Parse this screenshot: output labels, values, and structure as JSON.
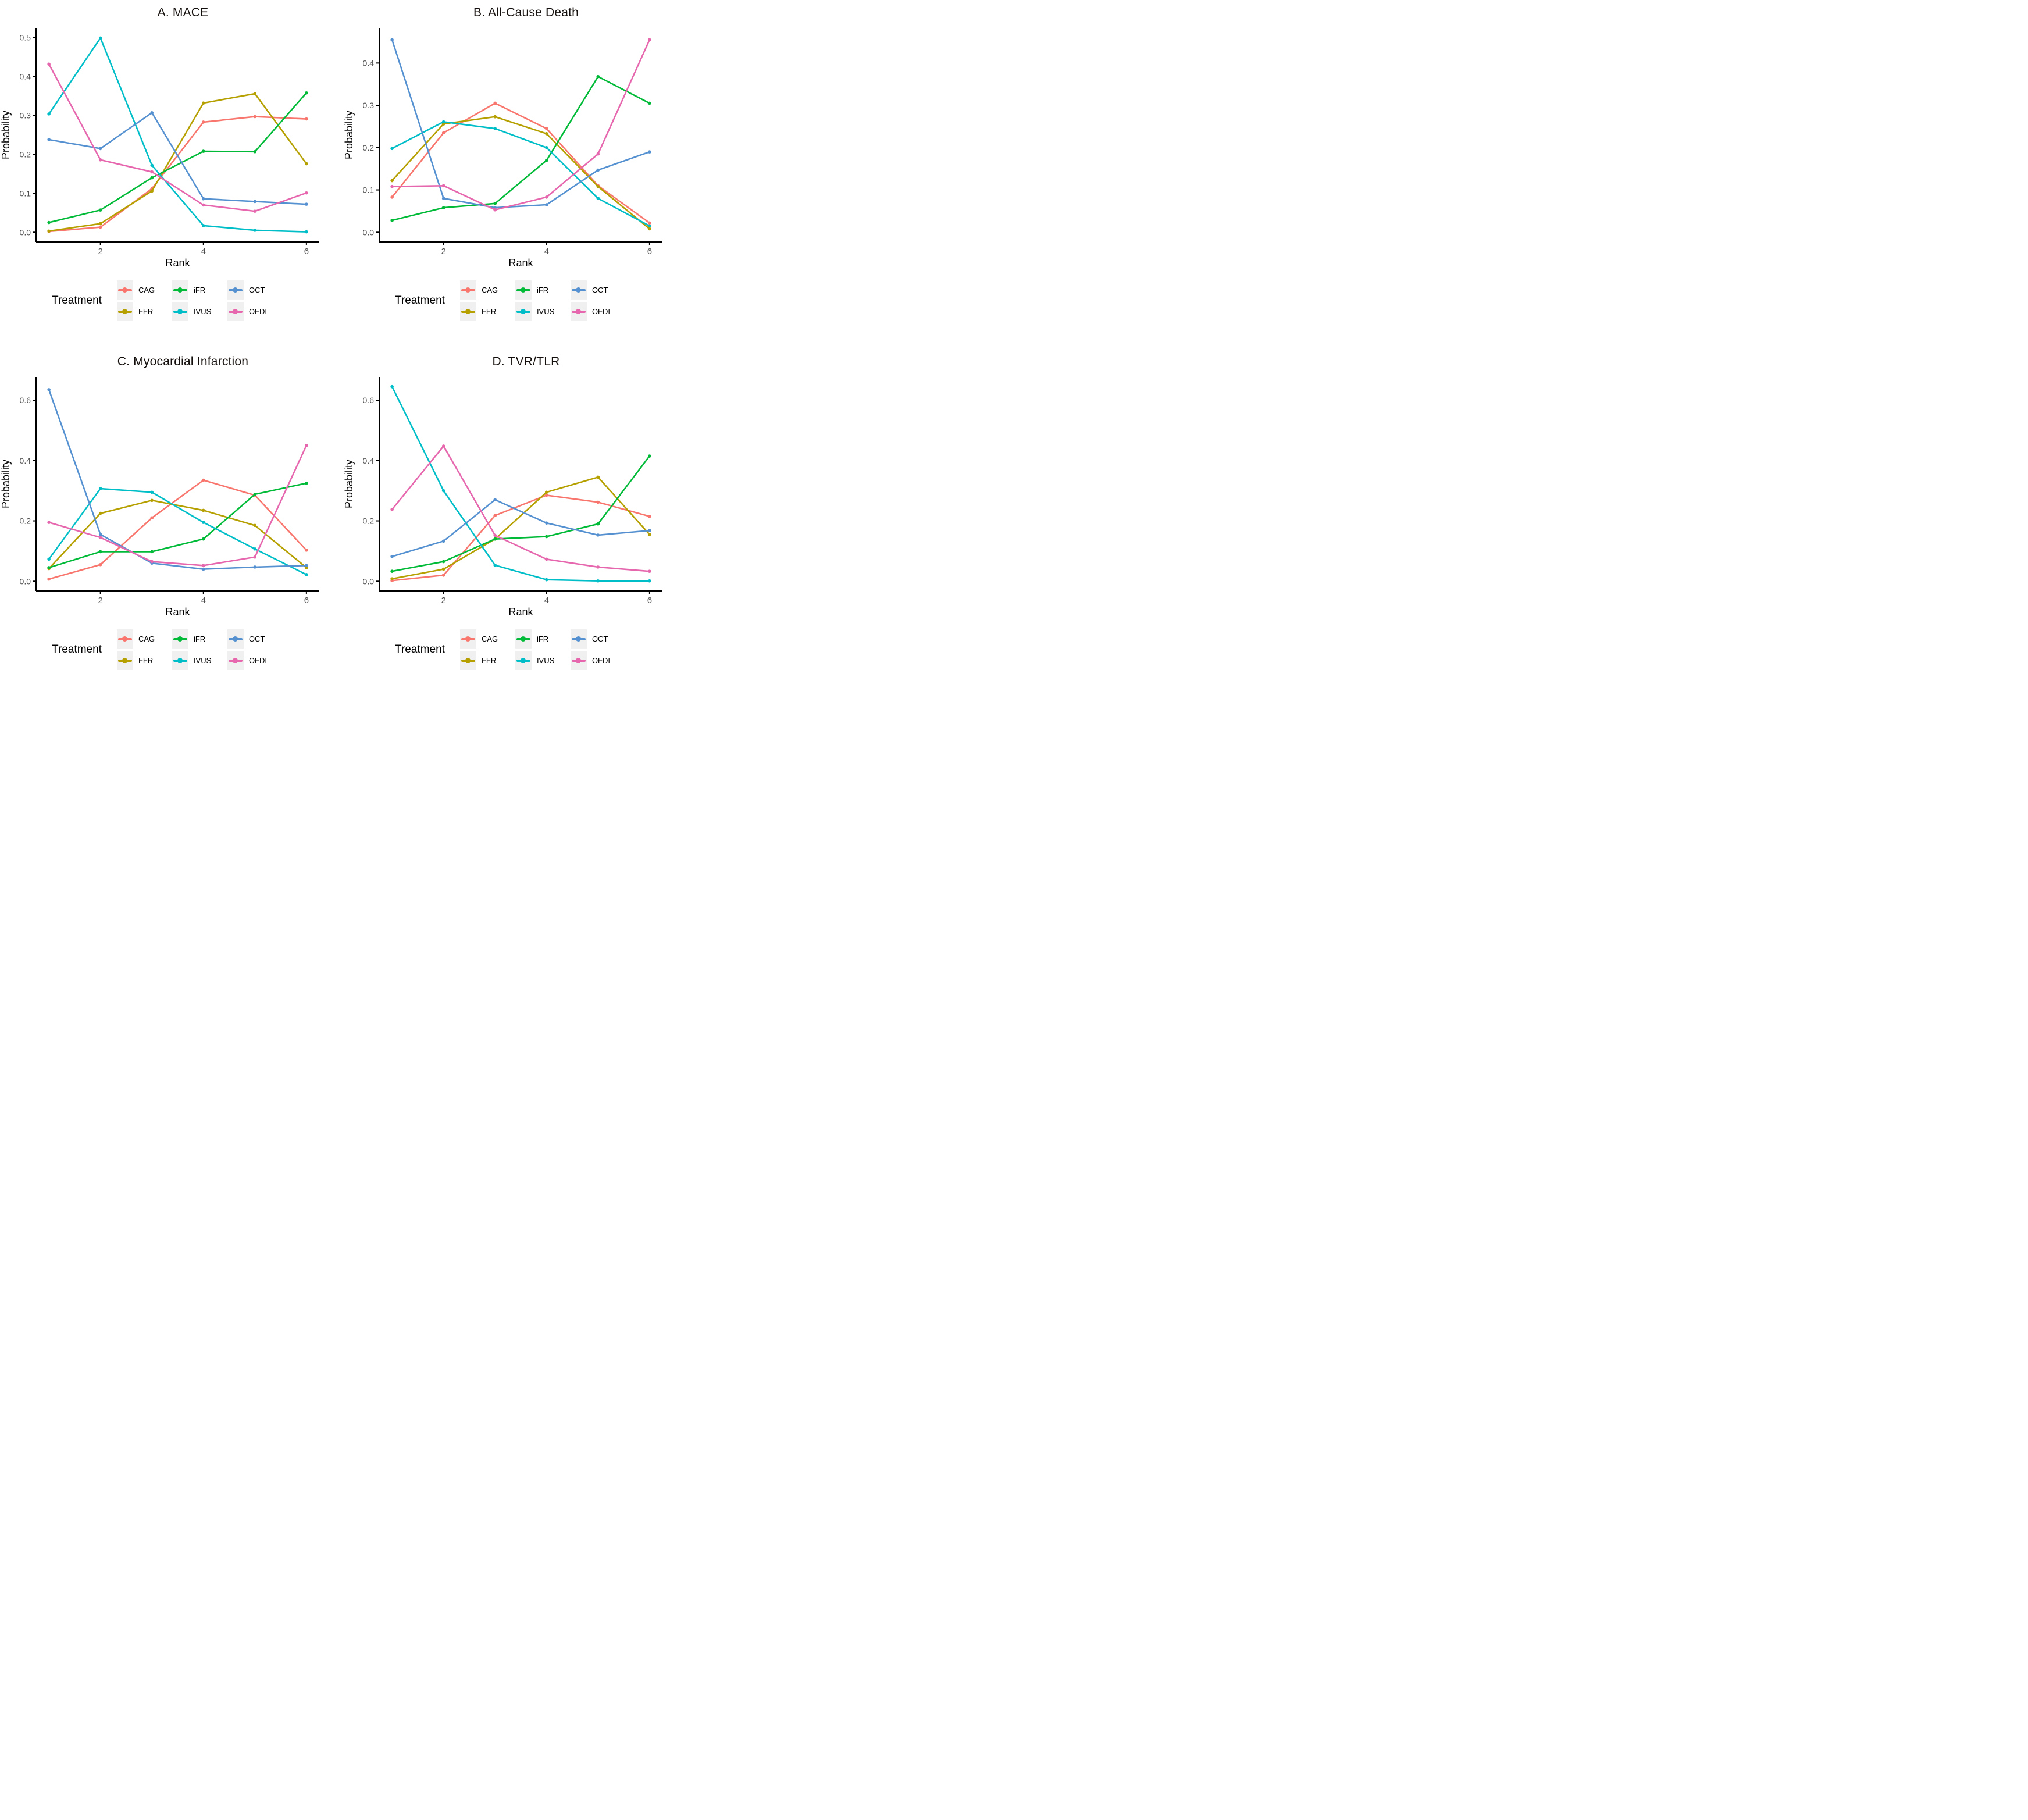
{
  "figure": {
    "ylabel": "Probability",
    "xlabel": "Rank",
    "background": "#FFFFFF",
    "axis_color": "#000000",
    "tick_label_color": "#4d4d4d"
  },
  "legend": {
    "title": "Treatment",
    "key_background": "#f0f0f0",
    "entries": [
      {
        "label": "CAG",
        "color": "#F8766D"
      },
      {
        "label": "FFR",
        "color": "#B5A000"
      },
      {
        "label": "iFR",
        "color": "#00BA38"
      },
      {
        "label": "IVUS",
        "color": "#00BEC8"
      },
      {
        "label": "OCT",
        "color": "#5591D1"
      },
      {
        "label": "OFDI",
        "color": "#E667AE"
      }
    ]
  },
  "chart_data": [
    {
      "type": "line",
      "title": "A. MACE",
      "xlabel": "Rank",
      "ylabel": "Probability",
      "x": [
        1,
        2,
        3,
        4,
        5,
        6
      ],
      "xticks": [
        2,
        4,
        6
      ],
      "yticks": [
        0.0,
        0.1,
        0.2,
        0.3,
        0.4,
        0.5
      ],
      "ylim": [
        0,
        0.5
      ],
      "grid": false,
      "legend_position": "bottom",
      "series": [
        {
          "name": "CAG",
          "color": "#F8766D",
          "values": [
            0.002,
            0.013,
            0.112,
            0.283,
            0.297,
            0.291
          ]
        },
        {
          "name": "FFR",
          "color": "#B5A000",
          "values": [
            0.003,
            0.022,
            0.106,
            0.332,
            0.356,
            0.176
          ]
        },
        {
          "name": "iFR",
          "color": "#00BA38",
          "values": [
            0.025,
            0.057,
            0.14,
            0.208,
            0.207,
            0.358
          ]
        },
        {
          "name": "IVUS",
          "color": "#00BEC8",
          "values": [
            0.304,
            0.499,
            0.172,
            0.017,
            0.005,
            0.001
          ]
        },
        {
          "name": "OCT",
          "color": "#5591D1",
          "values": [
            0.238,
            0.215,
            0.307,
            0.086,
            0.079,
            0.072
          ]
        },
        {
          "name": "OFDI",
          "color": "#E667AE",
          "values": [
            0.432,
            0.186,
            0.155,
            0.07,
            0.054,
            0.101
          ]
        }
      ]
    },
    {
      "type": "line",
      "title": "B. All-Cause Death",
      "xlabel": "Rank",
      "ylabel": "Probability",
      "x": [
        1,
        2,
        3,
        4,
        5,
        6
      ],
      "xticks": [
        2,
        4,
        6
      ],
      "yticks": [
        0.0,
        0.1,
        0.2,
        0.3,
        0.4
      ],
      "ylim": [
        0,
        0.46
      ],
      "grid": false,
      "legend_position": "bottom",
      "series": [
        {
          "name": "CAG",
          "color": "#F8766D",
          "values": [
            0.083,
            0.235,
            0.305,
            0.245,
            0.11,
            0.022
          ]
        },
        {
          "name": "FFR",
          "color": "#B5A000",
          "values": [
            0.122,
            0.256,
            0.273,
            0.233,
            0.108,
            0.008
          ]
        },
        {
          "name": "iFR",
          "color": "#00BA38",
          "values": [
            0.028,
            0.058,
            0.068,
            0.17,
            0.368,
            0.305
          ]
        },
        {
          "name": "IVUS",
          "color": "#00BEC8",
          "values": [
            0.198,
            0.261,
            0.245,
            0.2,
            0.08,
            0.015
          ]
        },
        {
          "name": "OCT",
          "color": "#5591D1",
          "values": [
            0.455,
            0.08,
            0.058,
            0.065,
            0.147,
            0.19
          ]
        },
        {
          "name": "OFDI",
          "color": "#E667AE",
          "values": [
            0.108,
            0.11,
            0.053,
            0.083,
            0.185,
            0.455
          ]
        }
      ]
    },
    {
      "type": "line",
      "title": "C. Myocardial Infarction",
      "xlabel": "Rank",
      "ylabel": "Probability",
      "x": [
        1,
        2,
        3,
        4,
        5,
        6
      ],
      "xticks": [
        2,
        4,
        6
      ],
      "yticks": [
        0.0,
        0.2,
        0.4,
        0.6
      ],
      "ylim": [
        0,
        0.645
      ],
      "grid": false,
      "legend_position": "bottom",
      "series": [
        {
          "name": "CAG",
          "color": "#F8766D",
          "values": [
            0.007,
            0.055,
            0.21,
            0.335,
            0.285,
            0.103
          ]
        },
        {
          "name": "FFR",
          "color": "#B5A000",
          "values": [
            0.042,
            0.225,
            0.268,
            0.235,
            0.185,
            0.045
          ]
        },
        {
          "name": "iFR",
          "color": "#00BA38",
          "values": [
            0.045,
            0.098,
            0.098,
            0.14,
            0.288,
            0.325
          ]
        },
        {
          "name": "IVUS",
          "color": "#00BEC8",
          "values": [
            0.073,
            0.307,
            0.295,
            0.195,
            0.107,
            0.022
          ]
        },
        {
          "name": "OCT",
          "color": "#5591D1",
          "values": [
            0.635,
            0.155,
            0.06,
            0.04,
            0.047,
            0.052
          ]
        },
        {
          "name": "OFDI",
          "color": "#E667AE",
          "values": [
            0.195,
            0.145,
            0.065,
            0.052,
            0.08,
            0.45
          ]
        }
      ]
    },
    {
      "type": "line",
      "title": "D. TVR/TLR",
      "xlabel": "Rank",
      "ylabel": "Probability",
      "x": [
        1,
        2,
        3,
        4,
        5,
        6
      ],
      "xticks": [
        2,
        4,
        6
      ],
      "yticks": [
        0.0,
        0.2,
        0.4,
        0.6
      ],
      "ylim": [
        0,
        0.645
      ],
      "grid": false,
      "legend_position": "bottom",
      "series": [
        {
          "name": "CAG",
          "color": "#F8766D",
          "values": [
            0.002,
            0.02,
            0.218,
            0.285,
            0.262,
            0.215
          ]
        },
        {
          "name": "FFR",
          "color": "#B5A000",
          "values": [
            0.008,
            0.04,
            0.14,
            0.295,
            0.345,
            0.155
          ]
        },
        {
          "name": "iFR",
          "color": "#00BA38",
          "values": [
            0.033,
            0.065,
            0.14,
            0.148,
            0.19,
            0.415
          ]
        },
        {
          "name": "IVUS",
          "color": "#00BEC8",
          "values": [
            0.645,
            0.3,
            0.053,
            0.005,
            0.001,
            0.001
          ]
        },
        {
          "name": "OCT",
          "color": "#5591D1",
          "values": [
            0.082,
            0.133,
            0.27,
            0.193,
            0.153,
            0.168
          ]
        },
        {
          "name": "OFDI",
          "color": "#E667AE",
          "values": [
            0.238,
            0.448,
            0.152,
            0.073,
            0.047,
            0.033
          ]
        }
      ]
    }
  ]
}
